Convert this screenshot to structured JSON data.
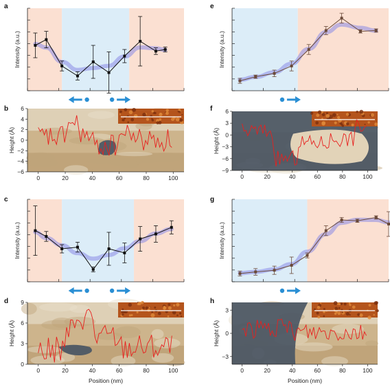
{
  "figure": {
    "panels": [
      {
        "id": "a",
        "label": "a",
        "kind": "intensity",
        "ylabel": "Intensity (a.u.)",
        "x_ticks": [],
        "arrows": [
          "left",
          "right"
        ]
      },
      {
        "id": "b",
        "label": "b",
        "kind": "height",
        "ylabel": "Height (Å)",
        "y_ticks": [
          "6",
          "4",
          "2",
          "0",
          "−2",
          "−4",
          "−6"
        ],
        "x_ticks": [
          "0",
          "20",
          "40",
          "60",
          "80",
          "100"
        ]
      },
      {
        "id": "c",
        "label": "c",
        "kind": "intensity",
        "ylabel": "Intensity (a.u.)",
        "x_ticks": [],
        "arrows": [
          "left",
          "right"
        ]
      },
      {
        "id": "d",
        "label": "d",
        "kind": "height",
        "ylabel": "Height (Å)",
        "y_ticks": [
          "9",
          "6",
          "3",
          "0"
        ],
        "x_ticks": [
          "0",
          "20",
          "40",
          "60",
          "80",
          "100"
        ]
      },
      {
        "id": "e",
        "label": "e",
        "kind": "intensity",
        "ylabel": "Intensity (a.u.)",
        "x_ticks": [],
        "arrows": [
          "right"
        ]
      },
      {
        "id": "f",
        "label": "f",
        "kind": "height",
        "ylabel": "Height (Å)",
        "y_ticks": [
          "6",
          "3",
          "0",
          "−3",
          "−6",
          "−9"
        ],
        "x_ticks": [
          "0",
          "20",
          "40",
          "60",
          "80",
          "100"
        ]
      },
      {
        "id": "g",
        "label": "g",
        "kind": "intensity",
        "ylabel": "Intensity (a.u.)",
        "x_ticks": [],
        "arrows": [
          "right"
        ]
      },
      {
        "id": "h",
        "label": "h",
        "kind": "height",
        "ylabel": "Height (Å)",
        "y_ticks": [
          "3",
          "0",
          "−3"
        ],
        "x_ticks": [
          "0",
          "20",
          "40",
          "60",
          "80",
          "100"
        ]
      }
    ],
    "xlabel_bottom_left": "Position (nm)",
    "xlabel_bottom_right": "Position (nm)",
    "colors": {
      "salmon_region": "#fbe0d2",
      "blue_region": "#dcedf8",
      "fit_line": "#8a8ae6",
      "data_a_c": "#111111",
      "data_e_g": "#6b4a3a",
      "height_trace": "#e8201e",
      "arrow": "#2a8fd4",
      "terrain": "#cdb48c",
      "dark_layer": "#4a5664"
    }
  },
  "chart_data": [
    {
      "panel": "a",
      "type": "line",
      "x": [
        5,
        12,
        22,
        32,
        42,
        52,
        62,
        72,
        82,
        88
      ],
      "y": [
        0.55,
        0.62,
        0.3,
        0.18,
        0.35,
        0.22,
        0.42,
        0.6,
        0.48,
        0.5
      ],
      "yerr": [
        0.15,
        0.1,
        0.06,
        0.05,
        0.2,
        0.25,
        0.08,
        0.3,
        0.04,
        0.03
      ],
      "regions": [
        {
          "from": 0,
          "to": 22,
          "color": "salmon"
        },
        {
          "from": 22,
          "to": 65,
          "color": "blue"
        },
        {
          "from": 65,
          "to": 100,
          "color": "salmon"
        }
      ]
    },
    {
      "panel": "b",
      "type": "line",
      "xlim": [
        -8,
        108
      ],
      "ylim": [
        -6,
        6
      ]
    },
    {
      "panel": "c",
      "type": "line",
      "x": [
        5,
        12,
        22,
        32,
        42,
        52,
        62,
        72,
        82,
        92
      ],
      "y": [
        0.62,
        0.55,
        0.4,
        0.42,
        0.15,
        0.4,
        0.35,
        0.52,
        0.58,
        0.66
      ],
      "yerr": [
        0.3,
        0.06,
        0.05,
        0.06,
        0.03,
        0.2,
        0.12,
        0.15,
        0.1,
        0.08
      ],
      "regions": [
        {
          "from": 0,
          "to": 22,
          "color": "salmon"
        },
        {
          "from": 22,
          "to": 68,
          "color": "blue"
        },
        {
          "from": 68,
          "to": 100,
          "color": "salmon"
        }
      ]
    },
    {
      "panel": "d",
      "type": "line",
      "xlim": [
        -8,
        108
      ],
      "ylim": [
        0,
        9
      ]
    },
    {
      "panel": "e",
      "type": "line",
      "x": [
        5,
        15,
        27,
        38,
        49,
        60,
        70,
        82,
        92
      ],
      "y": [
        0.12,
        0.17,
        0.21,
        0.3,
        0.5,
        0.73,
        0.88,
        0.72,
        0.73
      ],
      "yerr": [
        0.03,
        0.02,
        0.04,
        0.06,
        0.06,
        0.05,
        0.06,
        0.02,
        0.02
      ],
      "regions": [
        {
          "from": 0,
          "to": 42,
          "color": "blue"
        },
        {
          "from": 42,
          "to": 100,
          "color": "salmon"
        }
      ]
    },
    {
      "panel": "f",
      "type": "line",
      "xlim": [
        -8,
        108
      ],
      "ylim": [
        -9,
        6
      ]
    },
    {
      "panel": "g",
      "type": "line",
      "x": [
        5,
        15,
        27,
        38,
        48,
        60,
        70,
        80,
        92,
        100
      ],
      "y": [
        0.1,
        0.12,
        0.14,
        0.2,
        0.32,
        0.62,
        0.75,
        0.74,
        0.78,
        0.7
      ],
      "yerr": [
        0.03,
        0.04,
        0.05,
        0.1,
        0.03,
        0.06,
        0.03,
        0.02,
        0.02,
        0.15
      ],
      "regions": [
        {
          "from": 0,
          "to": 48,
          "color": "blue"
        },
        {
          "from": 48,
          "to": 100,
          "color": "salmon"
        }
      ]
    },
    {
      "panel": "h",
      "type": "line",
      "xlim": [
        -8,
        108
      ],
      "ylim": [
        -4,
        4
      ]
    }
  ]
}
